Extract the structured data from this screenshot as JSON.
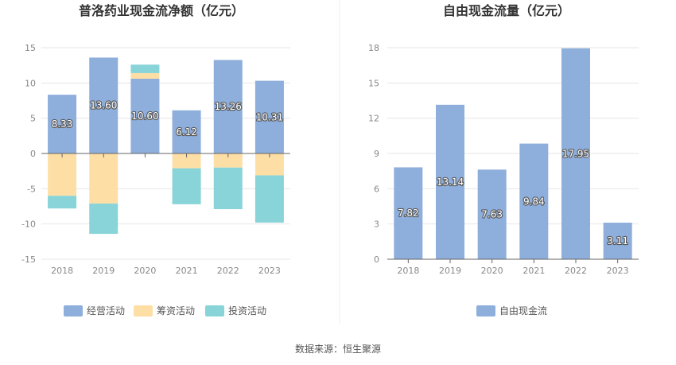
{
  "source": "数据来源：恒生聚源",
  "colors": {
    "operating": "#8eaedb",
    "financing": "#fddfa6",
    "investing": "#88d4d8",
    "fcf": "#8eaedb",
    "grid": "#e6e6e6",
    "axis": "#666666",
    "divider": "#eeeeee"
  },
  "chart_data": [
    {
      "type": "bar",
      "stacked": true,
      "title": "普洛药业现金流净额（亿元）",
      "categories": [
        "2018",
        "2019",
        "2020",
        "2021",
        "2022",
        "2023"
      ],
      "ylim": [
        -15,
        15
      ],
      "yticks": [
        15,
        10,
        5,
        0,
        -5,
        -10,
        -15
      ],
      "grid": true,
      "legend_position": "bottom",
      "series": [
        {
          "name": "经营活动",
          "values": [
            8.33,
            13.6,
            10.6,
            6.12,
            13.26,
            10.31
          ],
          "show_labels": true
        },
        {
          "name": "筹资活动",
          "values": [
            -6.0,
            -7.1,
            0.8,
            -2.1,
            -2.0,
            -3.1
          ],
          "show_labels": false
        },
        {
          "name": "投资活动",
          "values": [
            -1.8,
            -4.3,
            1.2,
            -5.1,
            -5.9,
            -6.7
          ],
          "show_labels": false
        }
      ]
    },
    {
      "type": "bar",
      "title": "自由现金流量（亿元）",
      "categories": [
        "2018",
        "2019",
        "2020",
        "2021",
        "2022",
        "2023"
      ],
      "ylim": [
        0,
        18
      ],
      "yticks": [
        18,
        15,
        12,
        9,
        6,
        3,
        0
      ],
      "grid": true,
      "legend_position": "bottom",
      "series": [
        {
          "name": "自由现金流",
          "values": [
            7.82,
            13.14,
            7.63,
            9.84,
            17.95,
            3.11
          ],
          "show_labels": true
        }
      ]
    }
  ]
}
